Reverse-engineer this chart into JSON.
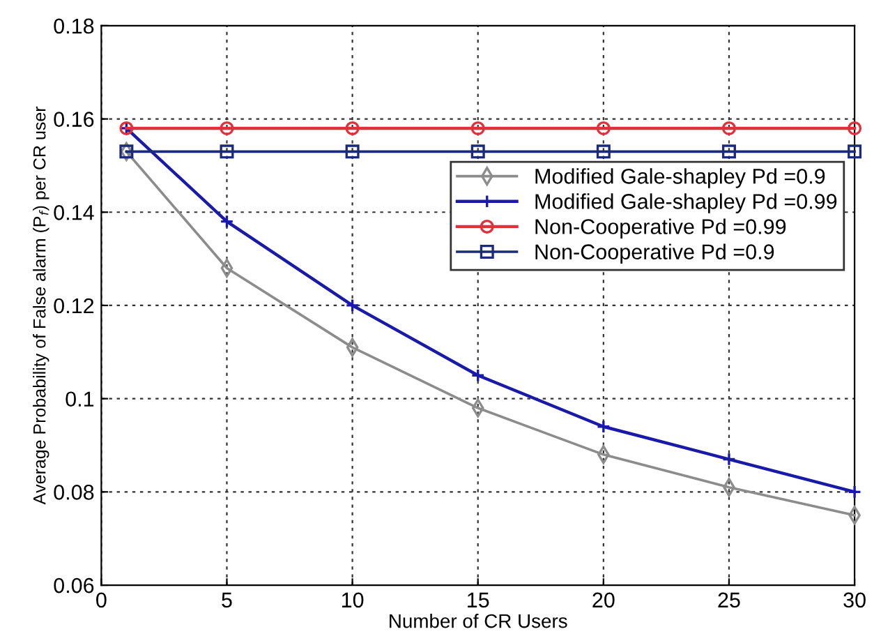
{
  "chart_data": {
    "type": "line",
    "xlabel": "Number of CR Users",
    "ylabel": "Average Probability of False alarm (P$_{f}$) per CR user",
    "x": [
      1,
      5,
      10,
      15,
      20,
      25,
      30
    ],
    "series": [
      {
        "name": "Modified Gale-shapley Pd =0.9",
        "color": "#8c8c8c",
        "marker": "diamond",
        "values": [
          0.153,
          0.128,
          0.111,
          0.098,
          0.088,
          0.081,
          0.075
        ]
      },
      {
        "name": "Modified Gale-shapley Pd =0.99",
        "color": "#1a1aa8",
        "marker": "cross",
        "values": [
          0.158,
          0.138,
          0.12,
          0.105,
          0.094,
          0.087,
          0.08
        ]
      },
      {
        "name": "Non-Cooperative Pd =0.99",
        "color": "#e0303a",
        "marker": "circle",
        "values": [
          0.158,
          0.158,
          0.158,
          0.158,
          0.158,
          0.158,
          0.158
        ]
      },
      {
        "name": "Non-Cooperative Pd =0.9",
        "color": "#1c2a7a",
        "marker": "square",
        "values": [
          0.153,
          0.153,
          0.153,
          0.153,
          0.153,
          0.153,
          0.153
        ]
      }
    ],
    "xlim": [
      0,
      30
    ],
    "xticks": [
      0,
      5,
      10,
      15,
      20,
      25,
      30
    ],
    "ylim": [
      0.06,
      0.18
    ],
    "yticks": [
      0.06,
      0.08,
      {
        "value": 0.1,
        "label": "0.1"
      },
      0.12,
      0.14,
      0.16,
      0.18
    ],
    "grid": true,
    "legend": "right",
    "line_style": "solid"
  }
}
